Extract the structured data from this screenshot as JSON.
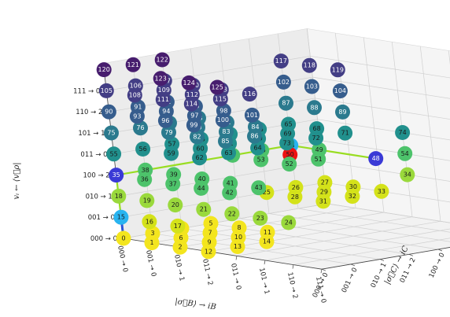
{
  "chart_data": {
    "type": "scatter",
    "dims": 3,
    "x_axis": {
      "label": "|σ⃗B⟩ → iB",
      "ticks": [
        "000 → 0",
        "001 → 0",
        "010 → 1",
        "011 → 2",
        "011 → 0",
        "101 → 1",
        "110 → 2",
        "111 → 0"
      ]
    },
    "y_axis": {
      "label": "|σ⃗C⟩ → iC",
      "ticks": [
        "000 → 0",
        "001 → 0",
        "010 → 1",
        "011 → 2",
        "100 → 0",
        "101 → 1",
        "110 → 2",
        "111 → 0"
      ]
    },
    "z_axis": {
      "label": "vᵢ ← ⟨v⃗ρ|",
      "ticks": [
        "000 → 0",
        "001 → 0",
        "010 → 1",
        "100 → 2",
        "011 → 0",
        "101 → 1",
        "110 → 2",
        "111 → 0"
      ]
    },
    "highlight_path": [
      [
        0,
        0,
        0
      ],
      [
        0,
        0,
        1
      ],
      [
        0,
        0,
        2
      ],
      [
        0,
        0,
        3
      ],
      [
        0,
        1,
        3
      ],
      [
        0,
        2,
        3
      ],
      [
        0,
        3,
        3
      ],
      [
        0,
        4,
        3
      ],
      [
        0,
        5,
        3
      ],
      [
        0,
        6,
        3
      ],
      [
        1,
        6,
        3
      ],
      [
        2,
        6,
        3
      ],
      [
        3,
        6,
        3
      ]
    ],
    "special_points": [
      {
        "label": "15",
        "color": "#29b4f0"
      },
      {
        "label": "35",
        "color": "#3a3ad6"
      },
      {
        "label": "45",
        "color": "#29b4f0"
      },
      {
        "label": "48",
        "color": "#3a3ad6"
      },
      {
        "label": "50",
        "color": "#ee1111"
      }
    ],
    "points": [
      {
        "label": "0",
        "x": 0,
        "y": 0,
        "z": 0
      },
      {
        "label": "1",
        "x": 1,
        "y": 0,
        "z": 0
      },
      {
        "label": "2",
        "x": 2,
        "y": 0,
        "z": 0
      },
      {
        "label": "3",
        "x": 0,
        "y": 1,
        "z": 0
      },
      {
        "label": "4",
        "x": 0,
        "y": 2,
        "z": 0
      },
      {
        "label": "5",
        "x": 0,
        "y": 3,
        "z": 0
      },
      {
        "label": "6",
        "x": 1,
        "y": 1,
        "z": 0
      },
      {
        "label": "7",
        "x": 1,
        "y": 2,
        "z": 0
      },
      {
        "label": "8",
        "x": 1,
        "y": 3,
        "z": 0
      },
      {
        "label": "9",
        "x": 2,
        "y": 1,
        "z": 0
      },
      {
        "label": "10",
        "x": 2,
        "y": 2,
        "z": 0
      },
      {
        "label": "11",
        "x": 2,
        "y": 3,
        "z": 0
      },
      {
        "label": "12",
        "x": 3,
        "y": 0,
        "z": 0
      },
      {
        "label": "13",
        "x": 3,
        "y": 1,
        "z": 0
      },
      {
        "label": "14",
        "x": 3,
        "y": 2,
        "z": 0
      },
      {
        "label": "15",
        "x": 0,
        "y": 0,
        "z": 1
      },
      {
        "label": "16",
        "x": 1,
        "y": 0,
        "z": 1
      },
      {
        "label": "17",
        "x": 2,
        "y": 0,
        "z": 1
      },
      {
        "label": "18",
        "x": 0,
        "y": 0,
        "z": 2
      },
      {
        "label": "19",
        "x": 1,
        "y": 0,
        "z": 2
      },
      {
        "label": "20",
        "x": 2,
        "y": 0,
        "z": 2
      },
      {
        "label": "21",
        "x": 3,
        "y": 0,
        "z": 2
      },
      {
        "label": "22",
        "x": 4,
        "y": 0,
        "z": 2
      },
      {
        "label": "23",
        "x": 5,
        "y": 0,
        "z": 2
      },
      {
        "label": "24",
        "x": 6,
        "y": 0,
        "z": 2
      },
      {
        "label": "25",
        "x": 0,
        "y": 5,
        "z": 1
      },
      {
        "label": "26",
        "x": 0,
        "y": 6,
        "z": 1
      },
      {
        "label": "27",
        "x": 0,
        "y": 7,
        "z": 1
      },
      {
        "label": "28",
        "x": 1,
        "y": 5,
        "z": 1
      },
      {
        "label": "29",
        "x": 1,
        "y": 6,
        "z": 1
      },
      {
        "label": "30",
        "x": 1,
        "y": 7,
        "z": 1
      },
      {
        "label": "31",
        "x": 2,
        "y": 5,
        "z": 1
      },
      {
        "label": "32",
        "x": 2,
        "y": 6,
        "z": 1
      },
      {
        "label": "33",
        "x": 2,
        "y": 7,
        "z": 1
      },
      {
        "label": "34",
        "x": 3,
        "y": 7,
        "z": 2
      },
      {
        "label": "35",
        "x": 0,
        "y": 0,
        "z": 3
      },
      {
        "label": "36",
        "x": 1,
        "y": 0,
        "z": 3
      },
      {
        "label": "37",
        "x": 2,
        "y": 0,
        "z": 3
      },
      {
        "label": "38",
        "x": 0,
        "y": 1,
        "z": 3
      },
      {
        "label": "39",
        "x": 1,
        "y": 1,
        "z": 3
      },
      {
        "label": "40",
        "x": 2,
        "y": 1,
        "z": 3
      },
      {
        "label": "41",
        "x": 3,
        "y": 1,
        "z": 3
      },
      {
        "label": "42",
        "x": 4,
        "y": 0,
        "z": 3
      },
      {
        "label": "43",
        "x": 4,
        "y": 1,
        "z": 3
      },
      {
        "label": "44",
        "x": 3,
        "y": 0,
        "z": 3
      },
      {
        "label": "45",
        "x": 0,
        "y": 6,
        "z": 3
      },
      {
        "label": "46",
        "x": 0,
        "y": 5,
        "z": 3
      },
      {
        "label": "47",
        "x": 0,
        "y": 4,
        "z": 3
      },
      {
        "label": "48",
        "x": 3,
        "y": 6,
        "z": 3
      },
      {
        "label": "49",
        "x": 1,
        "y": 6,
        "z": 3
      },
      {
        "label": "50",
        "x": 1,
        "y": 5,
        "z": 3
      },
      {
        "label": "51",
        "x": 2,
        "y": 5,
        "z": 3
      },
      {
        "label": "52",
        "x": 2,
        "y": 4,
        "z": 3
      },
      {
        "label": "53",
        "x": 1,
        "y": 4,
        "z": 3
      },
      {
        "label": "54",
        "x": 3,
        "y": 7,
        "z": 3
      },
      {
        "label": "55",
        "x": 0,
        "y": 0,
        "z": 4
      },
      {
        "label": "56",
        "x": 0,
        "y": 1,
        "z": 4
      },
      {
        "label": "57",
        "x": 0,
        "y": 2,
        "z": 4
      },
      {
        "label": "58",
        "x": 0,
        "y": 3,
        "z": 4
      },
      {
        "label": "59",
        "x": 1,
        "y": 1,
        "z": 4
      },
      {
        "label": "60",
        "x": 1,
        "y": 2,
        "z": 4
      },
      {
        "label": "61",
        "x": 1,
        "y": 3,
        "z": 4
      },
      {
        "label": "62",
        "x": 2,
        "y": 1,
        "z": 4
      },
      {
        "label": "63",
        "x": 2,
        "y": 2,
        "z": 4
      },
      {
        "label": "64",
        "x": 2,
        "y": 3,
        "z": 4
      },
      {
        "label": "65",
        "x": 0,
        "y": 6,
        "z": 4
      },
      {
        "label": "66",
        "x": 0,
        "y": 5,
        "z": 4
      },
      {
        "label": "67",
        "x": 0,
        "y": 4,
        "z": 4
      },
      {
        "label": "68",
        "x": 1,
        "y": 6,
        "z": 4
      },
      {
        "label": "69",
        "x": 1,
        "y": 5,
        "z": 4
      },
      {
        "label": "70",
        "x": 1,
        "y": 4,
        "z": 4
      },
      {
        "label": "71",
        "x": 2,
        "y": 6,
        "z": 4
      },
      {
        "label": "72",
        "x": 2,
        "y": 5,
        "z": 4
      },
      {
        "label": "73",
        "x": 2,
        "y": 4,
        "z": 4
      },
      {
        "label": "74",
        "x": 3,
        "y": 7,
        "z": 4
      },
      {
        "label": "75",
        "x": 0,
        "y": 0,
        "z": 5
      },
      {
        "label": "76",
        "x": 0,
        "y": 1,
        "z": 5
      },
      {
        "label": "77",
        "x": 0,
        "y": 2,
        "z": 5
      },
      {
        "label": "78",
        "x": 0,
        "y": 3,
        "z": 5
      },
      {
        "label": "79",
        "x": 1,
        "y": 1,
        "z": 5
      },
      {
        "label": "80",
        "x": 1,
        "y": 2,
        "z": 5
      },
      {
        "label": "81",
        "x": 1,
        "y": 3,
        "z": 5
      },
      {
        "label": "82",
        "x": 2,
        "y": 1,
        "z": 5
      },
      {
        "label": "83",
        "x": 2,
        "y": 2,
        "z": 5
      },
      {
        "label": "84",
        "x": 2,
        "y": 3,
        "z": 5
      },
      {
        "label": "85",
        "x": 3,
        "y": 1,
        "z": 5
      },
      {
        "label": "86",
        "x": 3,
        "y": 2,
        "z": 5
      },
      {
        "label": "87",
        "x": 0,
        "y": 6,
        "z": 5
      },
      {
        "label": "88",
        "x": 1,
        "y": 6,
        "z": 5
      },
      {
        "label": "89",
        "x": 2,
        "y": 6,
        "z": 5
      },
      {
        "label": "90",
        "x": 0,
        "y": 0,
        "z": 6
      },
      {
        "label": "91",
        "x": 0,
        "y": 1,
        "z": 6
      },
      {
        "label": "92",
        "x": 0,
        "y": 2,
        "z": 6
      },
      {
        "label": "93",
        "x": 1,
        "y": 0,
        "z": 6
      },
      {
        "label": "94",
        "x": 1,
        "y": 1,
        "z": 6
      },
      {
        "label": "95",
        "x": 1,
        "y": 2,
        "z": 6
      },
      {
        "label": "96",
        "x": 2,
        "y": 0,
        "z": 6
      },
      {
        "label": "97",
        "x": 2,
        "y": 1,
        "z": 6
      },
      {
        "label": "98",
        "x": 2,
        "y": 2,
        "z": 6
      },
      {
        "label": "99",
        "x": 3,
        "y": 0,
        "z": 6
      },
      {
        "label": "100",
        "x": 3,
        "y": 1,
        "z": 6
      },
      {
        "label": "101",
        "x": 3,
        "y": 2,
        "z": 6
      },
      {
        "label": "102",
        "x": 0,
        "y": 6,
        "z": 6
      },
      {
        "label": "103",
        "x": 1,
        "y": 6,
        "z": 6
      },
      {
        "label": "104",
        "x": 2,
        "y": 6,
        "z": 6
      },
      {
        "label": "105",
        "x": 0,
        "y": 0,
        "z": 7
      },
      {
        "label": "106",
        "x": 0,
        "y": 1,
        "z": 7
      },
      {
        "label": "107",
        "x": 0,
        "y": 2,
        "z": 7
      },
      {
        "label": "108",
        "x": 1,
        "y": 0,
        "z": 7
      },
      {
        "label": "109",
        "x": 1,
        "y": 1,
        "z": 7
      },
      {
        "label": "110",
        "x": 1,
        "y": 2,
        "z": 7
      },
      {
        "label": "111",
        "x": 2,
        "y": 0,
        "z": 7
      },
      {
        "label": "112",
        "x": 2,
        "y": 1,
        "z": 7
      },
      {
        "label": "113",
        "x": 2,
        "y": 2,
        "z": 7
      },
      {
        "label": "114",
        "x": 3,
        "y": 0,
        "z": 7
      },
      {
        "label": "115",
        "x": 3,
        "y": 1,
        "z": 7
      },
      {
        "label": "116",
        "x": 3,
        "y": 2,
        "z": 7
      },
      {
        "label": "117",
        "x": 0,
        "y": 6,
        "z": 7
      },
      {
        "label": "118",
        "x": 1,
        "y": 6,
        "z": 7
      },
      {
        "label": "119",
        "x": 2,
        "y": 6,
        "z": 7
      },
      {
        "label": "120",
        "x": 0,
        "y": 0,
        "z": 8
      },
      {
        "label": "121",
        "x": 0,
        "y": 1,
        "z": 8
      },
      {
        "label": "122",
        "x": 0,
        "y": 2,
        "z": 8
      },
      {
        "label": "123",
        "x": 2,
        "y": 0,
        "z": 8
      },
      {
        "label": "124",
        "x": 3,
        "y": 0,
        "z": 8
      },
      {
        "label": "125",
        "x": 4,
        "y": 0,
        "z": 8
      }
    ]
  }
}
